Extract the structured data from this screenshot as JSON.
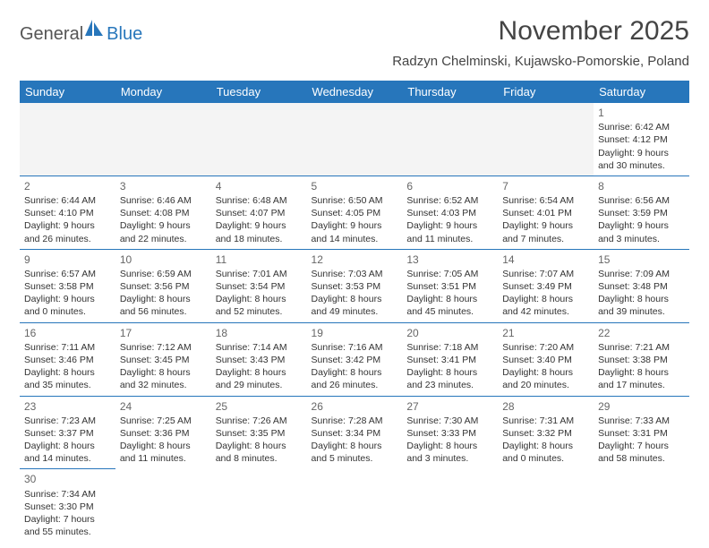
{
  "logo": {
    "general": "General",
    "blue": "Blue",
    "accent_color": "#2776bb",
    "text_color": "#555555"
  },
  "header": {
    "month_year": "November 2025",
    "location": "Radzyn Chelminski, Kujawsko-Pomorskie, Poland"
  },
  "colors": {
    "header_bg": "#2776bb",
    "header_text": "#ffffff",
    "border": "#2776bb",
    "empty_bg": "#f4f4f4",
    "body_text": "#333333",
    "daynum_color": "#666666",
    "title_color": "#444444"
  },
  "days_of_week": [
    "Sunday",
    "Monday",
    "Tuesday",
    "Wednesday",
    "Thursday",
    "Friday",
    "Saturday"
  ],
  "weeks": [
    [
      null,
      null,
      null,
      null,
      null,
      null,
      {
        "n": "1",
        "sunrise": "Sunrise: 6:42 AM",
        "sunset": "Sunset: 4:12 PM",
        "day1": "Daylight: 9 hours",
        "day2": "and 30 minutes."
      }
    ],
    [
      {
        "n": "2",
        "sunrise": "Sunrise: 6:44 AM",
        "sunset": "Sunset: 4:10 PM",
        "day1": "Daylight: 9 hours",
        "day2": "and 26 minutes."
      },
      {
        "n": "3",
        "sunrise": "Sunrise: 6:46 AM",
        "sunset": "Sunset: 4:08 PM",
        "day1": "Daylight: 9 hours",
        "day2": "and 22 minutes."
      },
      {
        "n": "4",
        "sunrise": "Sunrise: 6:48 AM",
        "sunset": "Sunset: 4:07 PM",
        "day1": "Daylight: 9 hours",
        "day2": "and 18 minutes."
      },
      {
        "n": "5",
        "sunrise": "Sunrise: 6:50 AM",
        "sunset": "Sunset: 4:05 PM",
        "day1": "Daylight: 9 hours",
        "day2": "and 14 minutes."
      },
      {
        "n": "6",
        "sunrise": "Sunrise: 6:52 AM",
        "sunset": "Sunset: 4:03 PM",
        "day1": "Daylight: 9 hours",
        "day2": "and 11 minutes."
      },
      {
        "n": "7",
        "sunrise": "Sunrise: 6:54 AM",
        "sunset": "Sunset: 4:01 PM",
        "day1": "Daylight: 9 hours",
        "day2": "and 7 minutes."
      },
      {
        "n": "8",
        "sunrise": "Sunrise: 6:56 AM",
        "sunset": "Sunset: 3:59 PM",
        "day1": "Daylight: 9 hours",
        "day2": "and 3 minutes."
      }
    ],
    [
      {
        "n": "9",
        "sunrise": "Sunrise: 6:57 AM",
        "sunset": "Sunset: 3:58 PM",
        "day1": "Daylight: 9 hours",
        "day2": "and 0 minutes."
      },
      {
        "n": "10",
        "sunrise": "Sunrise: 6:59 AM",
        "sunset": "Sunset: 3:56 PM",
        "day1": "Daylight: 8 hours",
        "day2": "and 56 minutes."
      },
      {
        "n": "11",
        "sunrise": "Sunrise: 7:01 AM",
        "sunset": "Sunset: 3:54 PM",
        "day1": "Daylight: 8 hours",
        "day2": "and 52 minutes."
      },
      {
        "n": "12",
        "sunrise": "Sunrise: 7:03 AM",
        "sunset": "Sunset: 3:53 PM",
        "day1": "Daylight: 8 hours",
        "day2": "and 49 minutes."
      },
      {
        "n": "13",
        "sunrise": "Sunrise: 7:05 AM",
        "sunset": "Sunset: 3:51 PM",
        "day1": "Daylight: 8 hours",
        "day2": "and 45 minutes."
      },
      {
        "n": "14",
        "sunrise": "Sunrise: 7:07 AM",
        "sunset": "Sunset: 3:49 PM",
        "day1": "Daylight: 8 hours",
        "day2": "and 42 minutes."
      },
      {
        "n": "15",
        "sunrise": "Sunrise: 7:09 AM",
        "sunset": "Sunset: 3:48 PM",
        "day1": "Daylight: 8 hours",
        "day2": "and 39 minutes."
      }
    ],
    [
      {
        "n": "16",
        "sunrise": "Sunrise: 7:11 AM",
        "sunset": "Sunset: 3:46 PM",
        "day1": "Daylight: 8 hours",
        "day2": "and 35 minutes."
      },
      {
        "n": "17",
        "sunrise": "Sunrise: 7:12 AM",
        "sunset": "Sunset: 3:45 PM",
        "day1": "Daylight: 8 hours",
        "day2": "and 32 minutes."
      },
      {
        "n": "18",
        "sunrise": "Sunrise: 7:14 AM",
        "sunset": "Sunset: 3:43 PM",
        "day1": "Daylight: 8 hours",
        "day2": "and 29 minutes."
      },
      {
        "n": "19",
        "sunrise": "Sunrise: 7:16 AM",
        "sunset": "Sunset: 3:42 PM",
        "day1": "Daylight: 8 hours",
        "day2": "and 26 minutes."
      },
      {
        "n": "20",
        "sunrise": "Sunrise: 7:18 AM",
        "sunset": "Sunset: 3:41 PM",
        "day1": "Daylight: 8 hours",
        "day2": "and 23 minutes."
      },
      {
        "n": "21",
        "sunrise": "Sunrise: 7:20 AM",
        "sunset": "Sunset: 3:40 PM",
        "day1": "Daylight: 8 hours",
        "day2": "and 20 minutes."
      },
      {
        "n": "22",
        "sunrise": "Sunrise: 7:21 AM",
        "sunset": "Sunset: 3:38 PM",
        "day1": "Daylight: 8 hours",
        "day2": "and 17 minutes."
      }
    ],
    [
      {
        "n": "23",
        "sunrise": "Sunrise: 7:23 AM",
        "sunset": "Sunset: 3:37 PM",
        "day1": "Daylight: 8 hours",
        "day2": "and 14 minutes."
      },
      {
        "n": "24",
        "sunrise": "Sunrise: 7:25 AM",
        "sunset": "Sunset: 3:36 PM",
        "day1": "Daylight: 8 hours",
        "day2": "and 11 minutes."
      },
      {
        "n": "25",
        "sunrise": "Sunrise: 7:26 AM",
        "sunset": "Sunset: 3:35 PM",
        "day1": "Daylight: 8 hours",
        "day2": "and 8 minutes."
      },
      {
        "n": "26",
        "sunrise": "Sunrise: 7:28 AM",
        "sunset": "Sunset: 3:34 PM",
        "day1": "Daylight: 8 hours",
        "day2": "and 5 minutes."
      },
      {
        "n": "27",
        "sunrise": "Sunrise: 7:30 AM",
        "sunset": "Sunset: 3:33 PM",
        "day1": "Daylight: 8 hours",
        "day2": "and 3 minutes."
      },
      {
        "n": "28",
        "sunrise": "Sunrise: 7:31 AM",
        "sunset": "Sunset: 3:32 PM",
        "day1": "Daylight: 8 hours",
        "day2": "and 0 minutes."
      },
      {
        "n": "29",
        "sunrise": "Sunrise: 7:33 AM",
        "sunset": "Sunset: 3:31 PM",
        "day1": "Daylight: 7 hours",
        "day2": "and 58 minutes."
      }
    ],
    [
      {
        "n": "30",
        "sunrise": "Sunrise: 7:34 AM",
        "sunset": "Sunset: 3:30 PM",
        "day1": "Daylight: 7 hours",
        "day2": "and 55 minutes."
      },
      null,
      null,
      null,
      null,
      null,
      null
    ]
  ]
}
